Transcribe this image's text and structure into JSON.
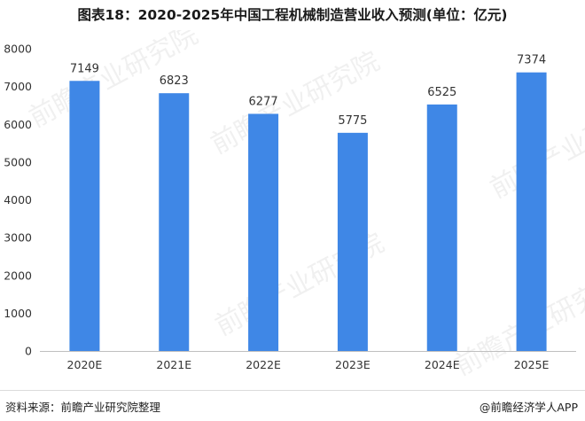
{
  "chart_data": {
    "type": "bar",
    "title": "图表18：2020-2025年中国工程机械制造营业收入预测(单位：亿元)",
    "categories": [
      "2020E",
      "2021E",
      "2022E",
      "2023E",
      "2024E",
      "2025E"
    ],
    "values": [
      7149,
      6823,
      6277,
      5775,
      6525,
      7374
    ],
    "ylim": [
      0,
      8000
    ],
    "yticks": [
      0,
      1000,
      2000,
      3000,
      4000,
      5000,
      6000,
      7000,
      8000
    ],
    "bar_color": "#3f87e6",
    "grid": false,
    "legend": "none",
    "xlabel": "",
    "ylabel": ""
  },
  "footer": {
    "source": "资料来源：前瞻产业研究院整理",
    "credit": "@前瞻经济学人APP"
  },
  "watermark": {
    "text": "前瞻产业研究院"
  }
}
